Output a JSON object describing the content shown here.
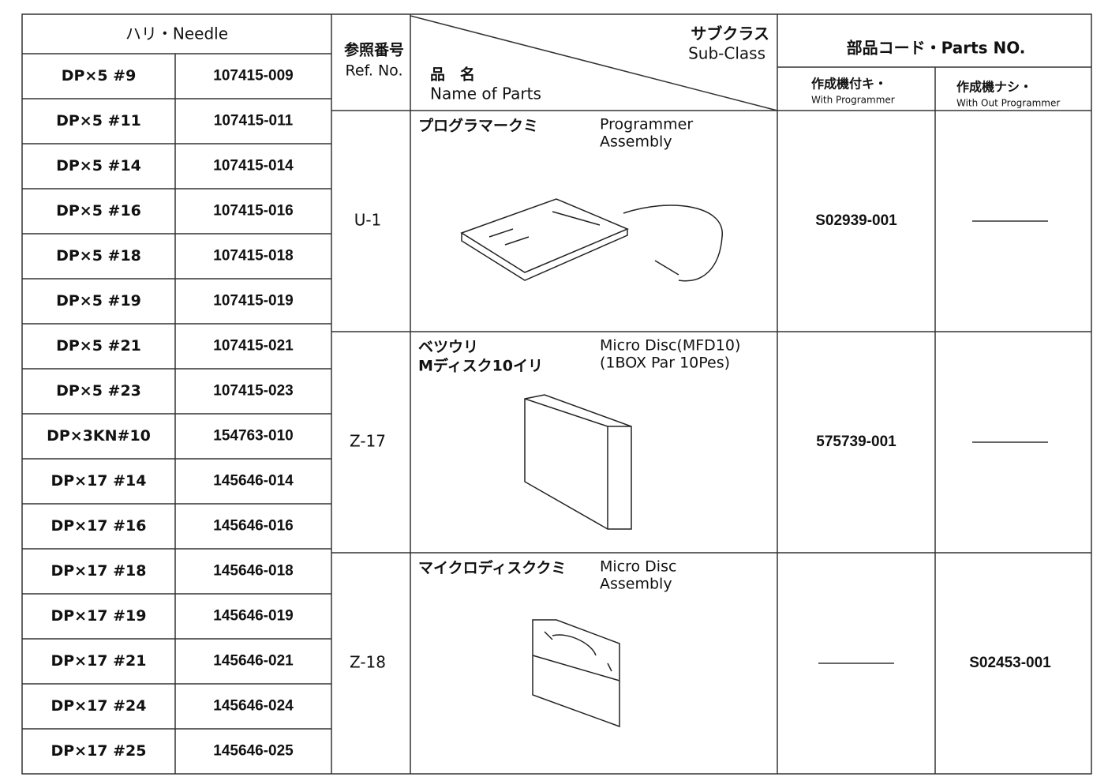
{
  "needle": {
    "title": "ハリ・Needle",
    "rows": [
      [
        "DP×5 #9",
        "107415-009"
      ],
      [
        "DP×5 #11",
        "107415-011"
      ],
      [
        "DP×5 #14",
        "107415-014"
      ],
      [
        "DP×5 #16",
        "107415-016"
      ],
      [
        "DP×5 #18",
        "107415-018"
      ],
      [
        "DP×5 #19",
        "107415-019"
      ],
      [
        "DP×5 #21",
        "107415-021"
      ],
      [
        "DP×5 #23",
        "107415-023"
      ],
      [
        "DP×3KN#10",
        "154763-010"
      ],
      [
        "DP×17 #14",
        "145646-014"
      ],
      [
        "DP×17 #16",
        "145646-016"
      ],
      [
        "DP×17 #18",
        "145646-018"
      ],
      [
        "DP×17 #19",
        "145646-019"
      ],
      [
        "DP×17 #21",
        "145646-021"
      ],
      [
        "DP×17 #24",
        "145646-024"
      ],
      [
        "DP×17 #25",
        "145646-025"
      ]
    ]
  },
  "header": {
    "ref_jp": "参照番号",
    "ref_en": "Ref. No.",
    "name_jp": "品　名",
    "name_en": "Name of Parts",
    "subclass_jp": "サブクラス",
    "subclass_en": "Sub-Class",
    "parts_title": "部品コード・Parts NO.",
    "with_jp": "作成機付キ・",
    "with_en": "With Programmer",
    "without_jp": "作成機ナシ・",
    "without_en": "With Out Programmer"
  },
  "parts": [
    {
      "ref": "U-1",
      "name_jp": [
        "プログラマークミ"
      ],
      "name_en": [
        "Programmer",
        "Assembly"
      ],
      "with": "S02939-001"
    },
    {
      "ref": "Z-17",
      "name_jp": [
        "ベツウリ",
        "Mディスク10イリ"
      ],
      "name_en": [
        "Micro Disc(MFD10)",
        "(1BOX Par 10Pes)"
      ],
      "with": "575739-001"
    },
    {
      "ref": "Z-18",
      "name_jp": [
        "マイクロディスククミ"
      ],
      "name_en": [
        "Micro Disc",
        "Assembly"
      ],
      "without": "S02453-001"
    }
  ]
}
